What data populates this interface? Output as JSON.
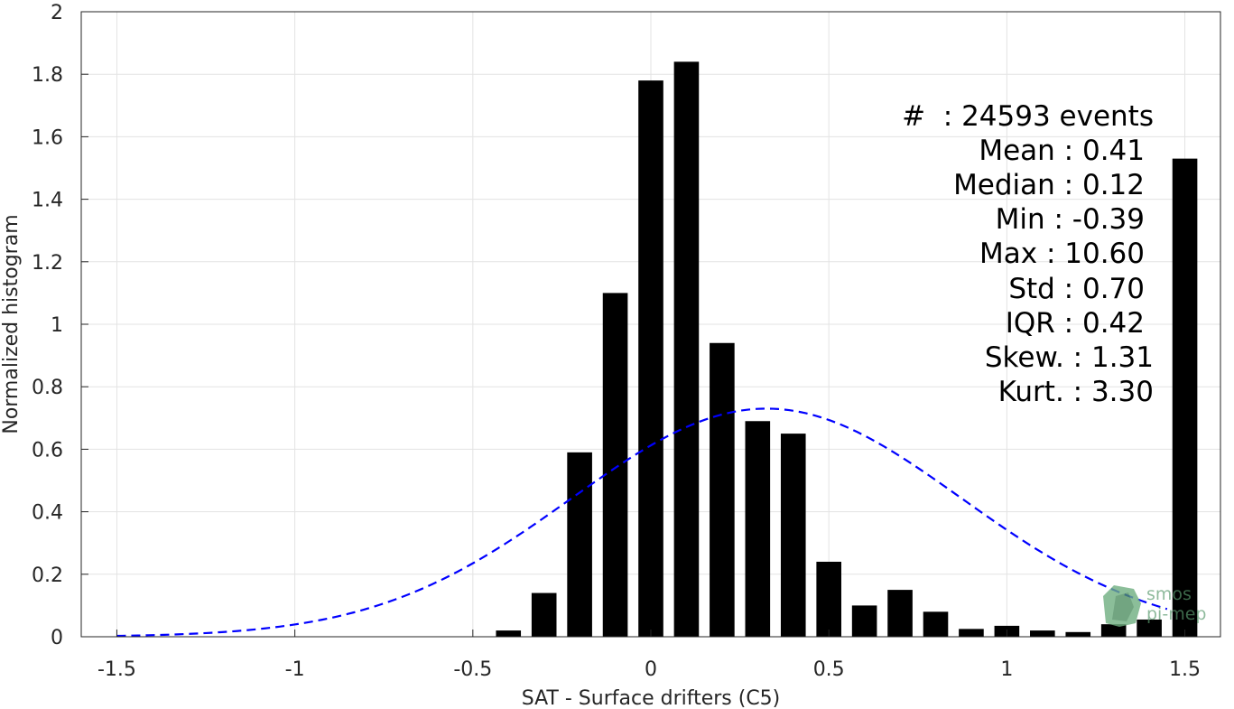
{
  "chart_data": {
    "type": "bar",
    "xlabel": "SAT - Surface drifters (C5)",
    "ylabel": "Normalized histogram",
    "xlim": [
      -1.6,
      1.6
    ],
    "ylim": [
      0,
      2
    ],
    "xticks": [
      -1.5,
      -1,
      -0.5,
      0,
      0.5,
      1,
      1.5
    ],
    "xtick_labels": [
      "-1.5",
      "-1",
      "-0.5",
      "0",
      "0.5",
      "1",
      "1.5"
    ],
    "yticks": [
      0,
      0.2,
      0.4,
      0.6,
      0.8,
      1,
      1.2,
      1.4,
      1.6,
      1.8,
      2
    ],
    "ytick_labels": [
      "0",
      "0.2",
      "0.4",
      "0.6",
      "0.8",
      "1",
      "1.2",
      "1.4",
      "1.6",
      "1.8",
      "2"
    ],
    "grid": true,
    "bar_width": 0.07,
    "bar_color": "#000000",
    "bars": {
      "x": [
        -0.4,
        -0.3,
        -0.2,
        -0.1,
        0.0,
        0.1,
        0.2,
        0.3,
        0.4,
        0.5,
        0.6,
        0.7,
        0.8,
        0.9,
        1.0,
        1.1,
        1.2,
        1.3,
        1.4,
        1.5
      ],
      "values": [
        0.02,
        0.14,
        0.59,
        1.1,
        1.78,
        1.84,
        0.94,
        0.69,
        0.65,
        0.24,
        0.1,
        0.15,
        0.08,
        0.025,
        0.035,
        0.02,
        0.015,
        0.04,
        0.055,
        1.53
      ]
    },
    "gaussian_fit": {
      "style": "dashed",
      "color": "#0000ff",
      "mean": 0.325,
      "std": 0.548,
      "peak": 0.73,
      "x_range": [
        -1.5,
        1.45
      ]
    },
    "stats_lines": [
      "#  : 24593 events",
      "Mean : 0.41",
      "Median : 0.12",
      "Min : -0.39",
      "Max : 10.60",
      "Std : 0.70",
      "IQR : 0.42",
      "Skew. : 1.31",
      "Kurt. : 3.30"
    ]
  },
  "logo": {
    "line1": "smos",
    "line2": "pi-mep",
    "color": "#5a9a6e"
  }
}
